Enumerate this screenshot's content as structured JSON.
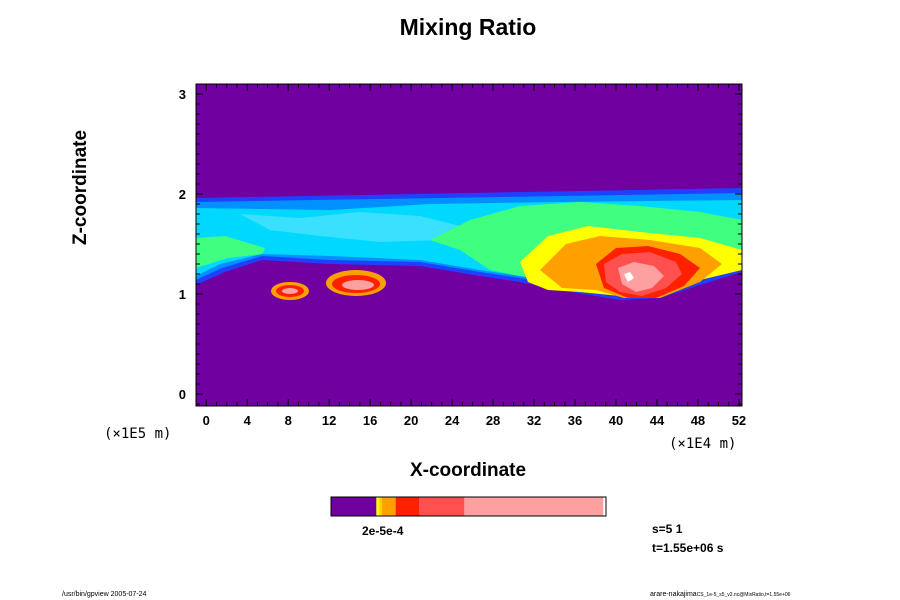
{
  "chart_data": {
    "type": "heatmap",
    "title": "Mixing Ratio",
    "xlabel": "X-coordinate",
    "ylabel": "Z-coordinate",
    "x_unit": "(×1E4 m)",
    "y_unit": "(×1E5 m)",
    "xlim": [
      -1,
      52.3
    ],
    "ylim": [
      -0.12,
      3.1
    ],
    "x_ticks": [
      "0",
      "4",
      "8",
      "12",
      "16",
      "20",
      "24",
      "28",
      "32",
      "36",
      "40",
      "44",
      "48",
      "52"
    ],
    "y_ticks": [
      "0",
      "1",
      "2",
      "3"
    ],
    "background_color": "#7000a0",
    "colorbar": {
      "colors": [
        "#7000a0",
        "#ffff00",
        "#ffd000",
        "#ffa000",
        "#ff2000",
        "#ff5050",
        "#ffa0a0"
      ],
      "fractions": [
        0.165,
        0.01,
        0.01,
        0.05,
        0.085,
        0.165,
        0.505
      ],
      "labels": "2e-5e-4"
    },
    "info": {
      "s": "s=5 1",
      "t": "t=1.55e+06 s"
    }
  },
  "footer": {
    "left": "/usr/bin/gpview 2005-07-24",
    "right": "arare-nakajima",
    "right_small": "CS_1e-5_s5_v2.nc@MixRatio,t=1.55e+06"
  }
}
